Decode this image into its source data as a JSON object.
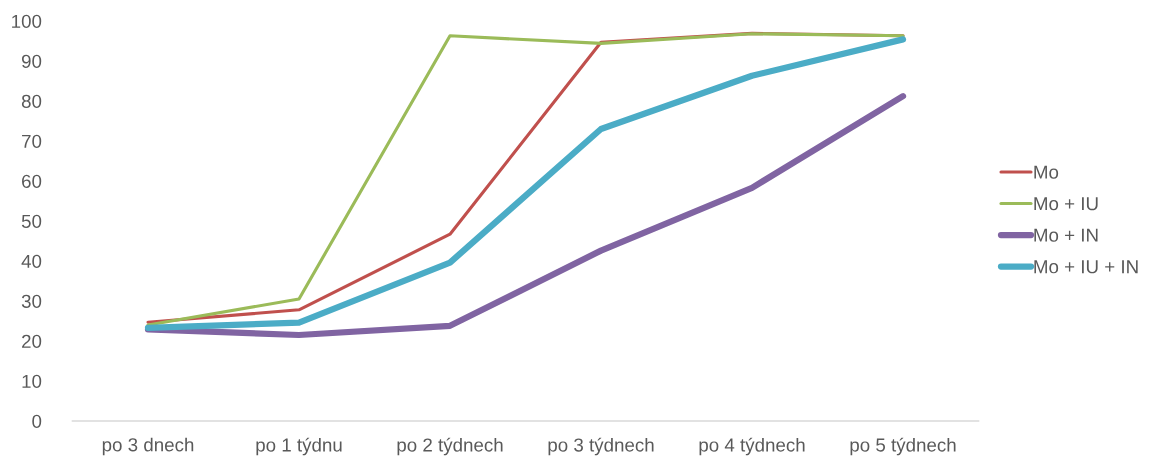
{
  "chart_data": {
    "type": "line",
    "categories": [
      "po 3 dnech",
      "po 1 týdnu",
      "po 2 týdnech",
      "po 3 týdnech",
      "po 4 týdnech",
      "po 5 týdnech"
    ],
    "series": [
      {
        "name": "Mo",
        "color": "#c0504d",
        "values": [
          24.7,
          27.8,
          46.7,
          94.7,
          96.9,
          96.3
        ]
      },
      {
        "name": "Mo + IU",
        "color": "#9bbb59",
        "values": [
          24.0,
          30.5,
          96.3,
          94.4,
          96.8,
          96.3
        ]
      },
      {
        "name": "Mo + IN",
        "color": "#8064a2",
        "values": [
          22.9,
          21.5,
          23.8,
          42.6,
          58.3,
          81.2
        ]
      },
      {
        "name": "Mo + IU + IN",
        "color": "#4bacc6",
        "values": [
          23.3,
          24.6,
          39.6,
          73.0,
          86.3,
          95.4
        ]
      }
    ],
    "ylim": [
      0,
      100
    ],
    "yticks": [
      0,
      10,
      20,
      30,
      40,
      50,
      60,
      70,
      80,
      90,
      100
    ],
    "grid": false,
    "legend": "right",
    "marker": "none",
    "line_style": "solid"
  }
}
